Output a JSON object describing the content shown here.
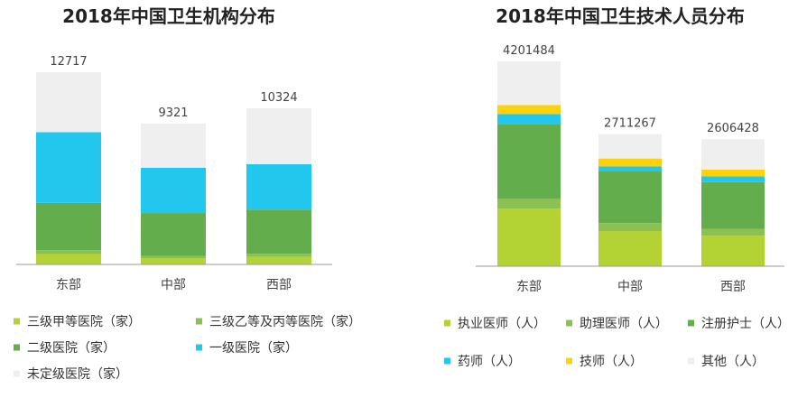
{
  "chart_data": [
    {
      "type": "bar",
      "stacked": true,
      "title": "2018年中国卫生机构分布",
      "categories": [
        "东部",
        "中部",
        "西部"
      ],
      "totals": [
        12717,
        9321,
        10324
      ],
      "series": [
        {
          "name": "三级甲等医院（家）",
          "color": "#b3d334",
          "values": [
            690,
            400,
            500
          ]
        },
        {
          "name": "三级乙等及丙等医院（家）",
          "color": "#8cc152",
          "values": [
            250,
            160,
            200
          ]
        },
        {
          "name": "二级医院（家）",
          "color": "#63ad4d",
          "values": [
            3130,
            2840,
            2930
          ]
        },
        {
          "name": "一级医院（家）",
          "color": "#22c7ee",
          "values": [
            4680,
            3000,
            3000
          ]
        },
        {
          "name": "未定级医院（家）",
          "color": "#efefef",
          "values": [
            3967,
            2921,
            3694
          ]
        }
      ],
      "ylim": [
        0,
        12717
      ],
      "grid": false,
      "legend_position": "bottom"
    },
    {
      "type": "bar",
      "stacked": true,
      "title": "2018年中国卫生技术人员分布",
      "categories": [
        "东部",
        "中部",
        "西部"
      ],
      "totals": [
        4201484,
        2711267,
        2606428
      ],
      "series": [
        {
          "name": "执业医师（人）",
          "color": "#b3d334",
          "values": [
            1180000,
            721000,
            625000
          ]
        },
        {
          "name": "助理医师（人）",
          "color": "#8cc152",
          "values": [
            201000,
            164000,
            137000
          ]
        },
        {
          "name": "注册护士（人）",
          "color": "#63ad4d",
          "values": [
            1540000,
            1070000,
            963000
          ]
        },
        {
          "name": "药师（人）",
          "color": "#22c7ee",
          "values": [
            201000,
            91000,
            120000
          ]
        },
        {
          "name": "技师（人）",
          "color": "#fdd20a",
          "values": [
            185000,
            163000,
            137000
          ]
        },
        {
          "name": "其他（人）",
          "color": "#efefef",
          "values": [
            894484,
            502267,
            624428
          ]
        }
      ],
      "ylim": [
        0,
        4201484
      ],
      "grid": false,
      "legend_position": "bottom"
    }
  ]
}
